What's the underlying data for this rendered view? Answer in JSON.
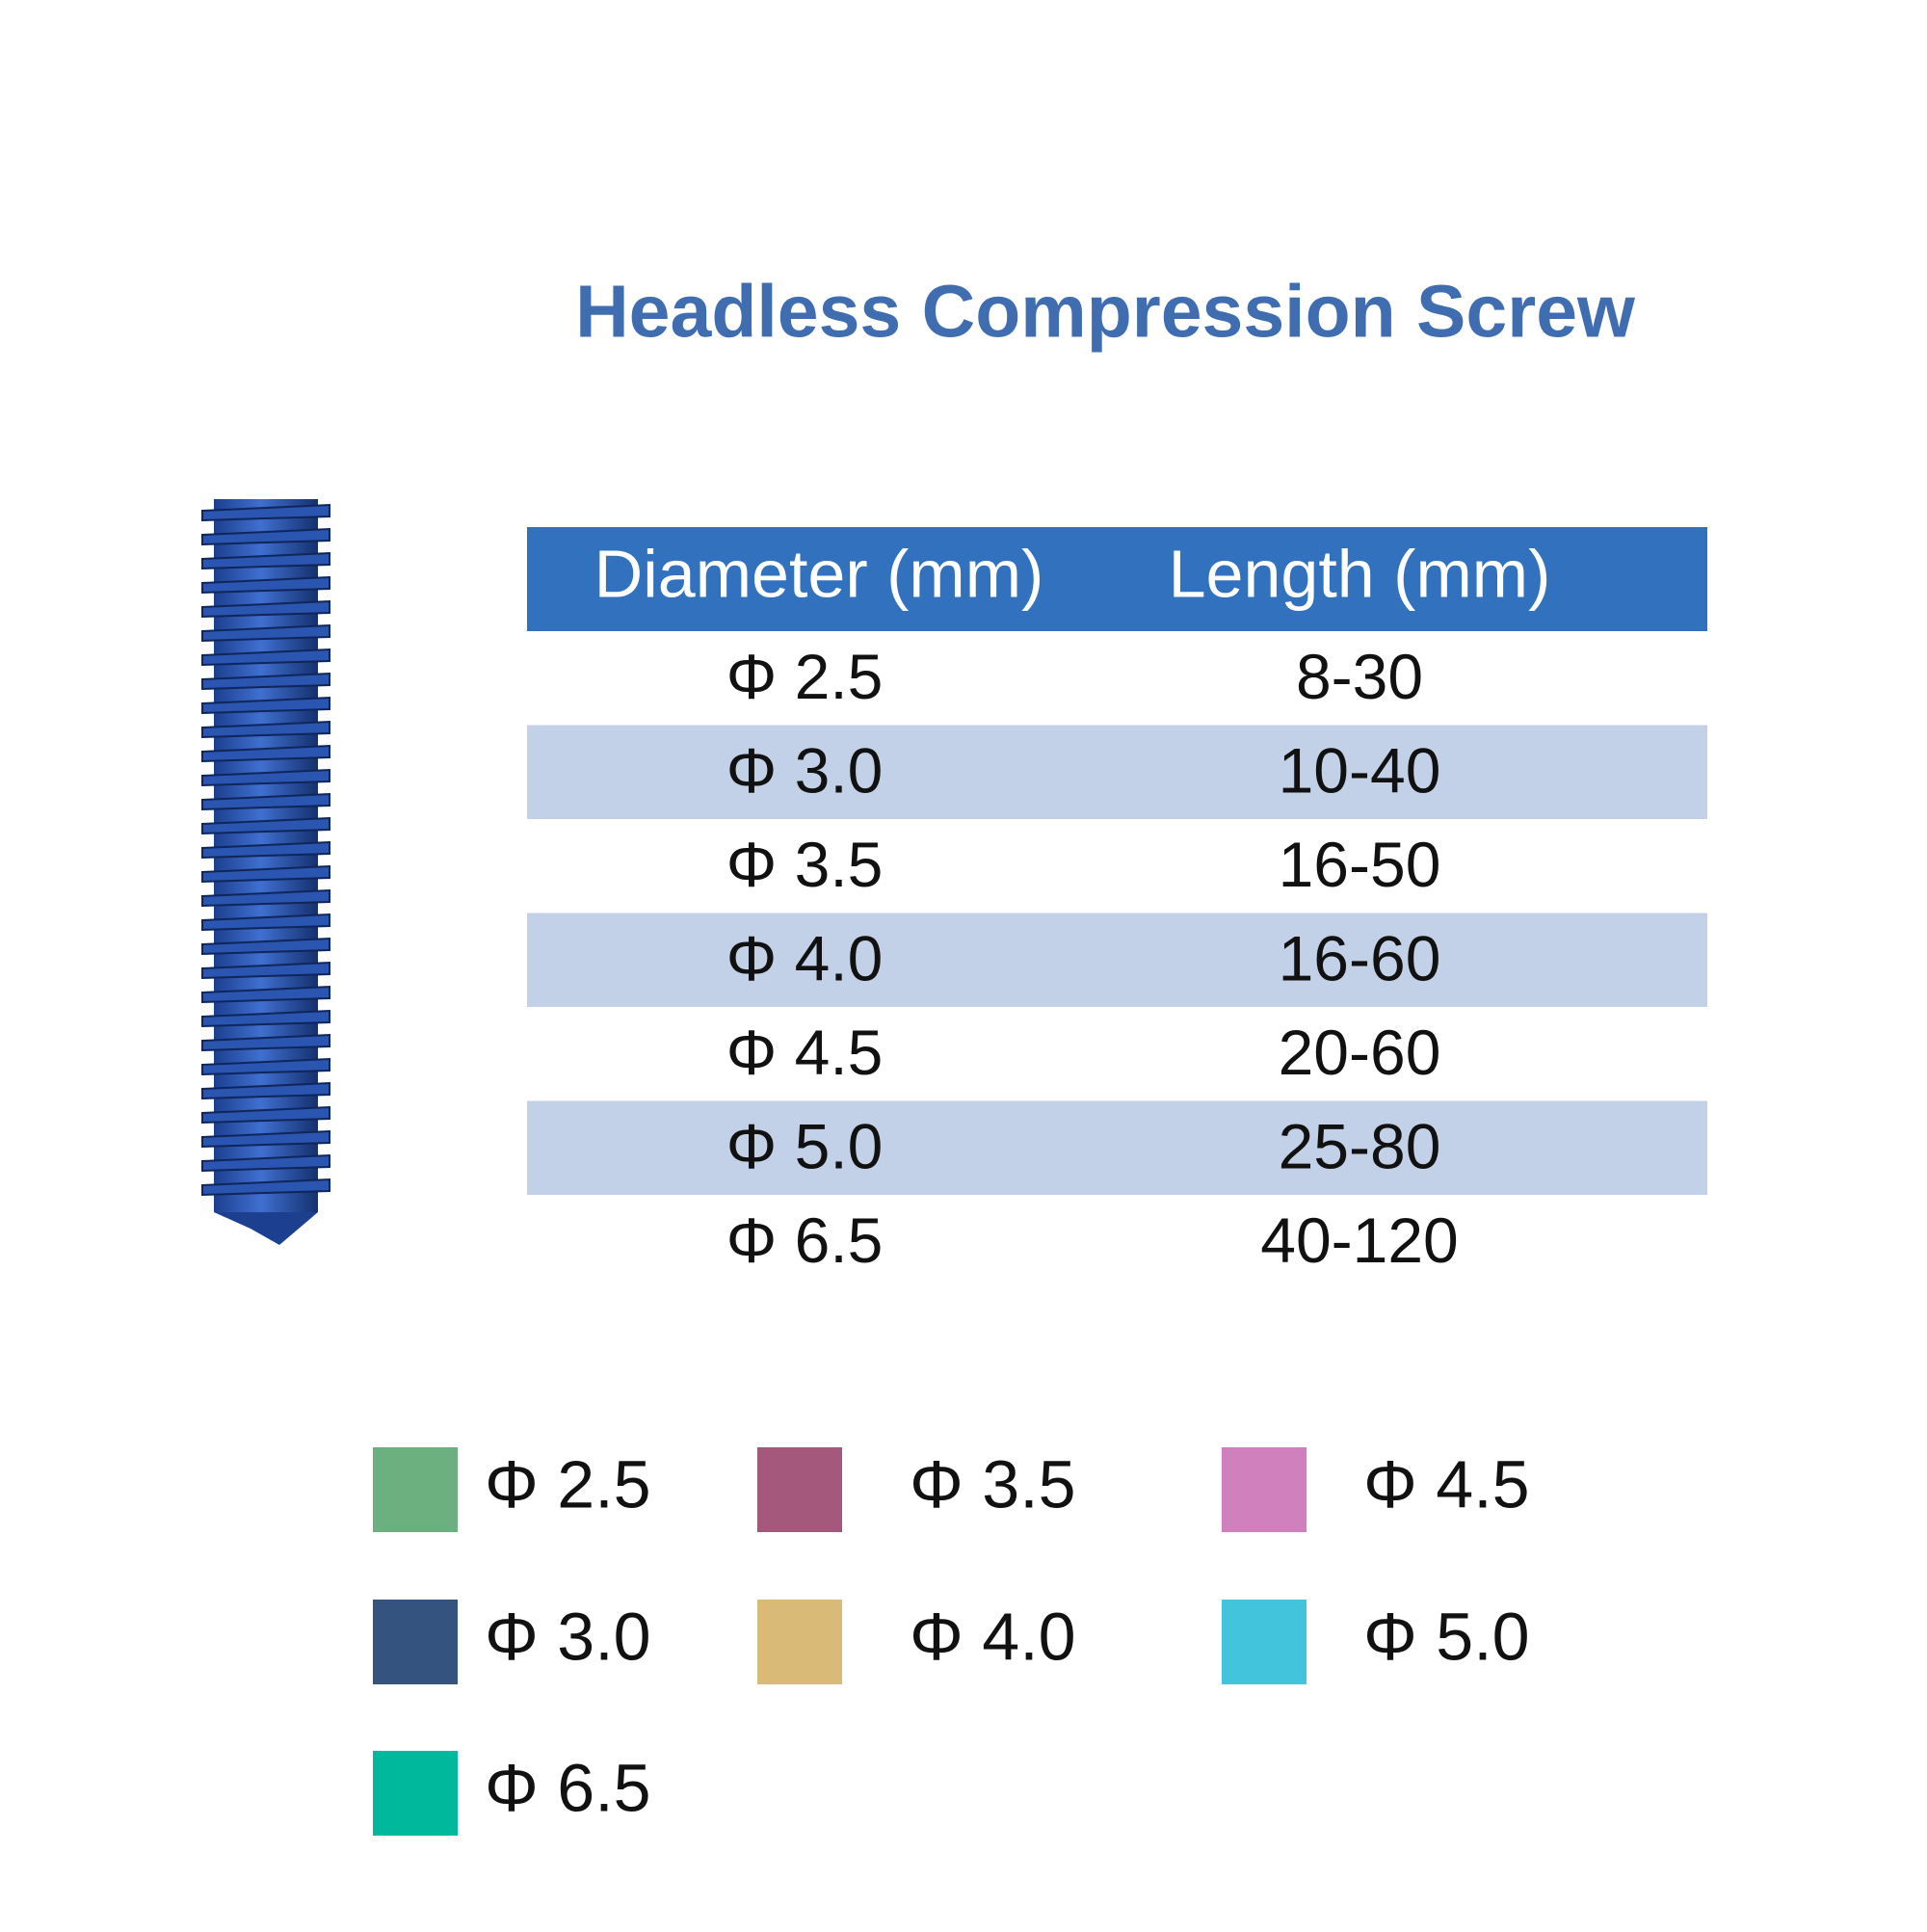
{
  "header": {
    "title": "Headless Compression Screw"
  },
  "table": {
    "headers": [
      "Diameter (mm)",
      "Length (mm)"
    ],
    "rows": [
      [
        "Φ 2.5",
        "8-30"
      ],
      [
        "Φ 3.0",
        "10-40"
      ],
      [
        "Φ 3.5",
        "16-50"
      ],
      [
        "Φ 4.0",
        "16-60"
      ],
      [
        "Φ 4.5",
        "20-60"
      ],
      [
        "Φ 5.0",
        "25-80"
      ],
      [
        "Φ 6.5",
        "40-120"
      ]
    ]
  },
  "legend": [
    {
      "label": "Φ 2.5",
      "color": "#6db07f"
    },
    {
      "label": "Φ 3.5",
      "color": "#a4587c"
    },
    {
      "label": "Φ 4.5",
      "color": "#d080bc"
    },
    {
      "label": "Φ 3.0",
      "color": "#34537f"
    },
    {
      "label": "Φ 4.0",
      "color": "#d9bb77"
    },
    {
      "label": "Φ 5.0",
      "color": "#41c4dc"
    },
    {
      "label": "Φ 6.5",
      "color": "#00b89c"
    }
  ]
}
